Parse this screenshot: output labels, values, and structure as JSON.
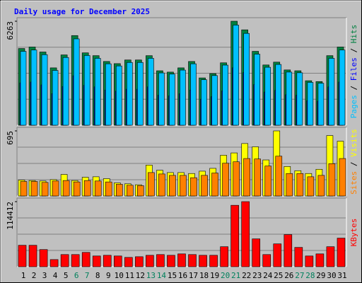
{
  "title": "Daily usage for December 2025",
  "chart_data": [
    {
      "type": "bar",
      "ylim": [
        0,
        6263
      ],
      "yticks": [
        6263
      ],
      "series": [
        {
          "name": "Hits",
          "color": "#008040",
          "values": [
            4620,
            4710,
            4410,
            3455,
            4235,
            5400,
            4360,
            4190,
            3840,
            3710,
            3930,
            3930,
            4190,
            3280,
            3200,
            3455,
            3840,
            2850,
            3110,
            3760,
            6263,
            5745,
            4450,
            3630,
            3800,
            3330,
            3280,
            2680,
            2630,
            4190,
            4710
          ]
        },
        {
          "name": "Files",
          "color": "#0000ff",
          "values": [
            2550,
            2600,
            2430,
            1900,
            2330,
            2980,
            2400,
            2310,
            2120,
            2050,
            2170,
            2170,
            2310,
            1810,
            1770,
            1900,
            2120,
            1570,
            1720,
            2070,
            3460,
            3170,
            2450,
            2000,
            2100,
            1840,
            1810,
            1480,
            1450,
            2310,
            2600
          ]
        },
        {
          "name": "Pages",
          "color": "#00c0ff",
          "values": [
            4450,
            4530,
            4250,
            3300,
            4080,
            5200,
            4200,
            4030,
            3700,
            3570,
            3780,
            3780,
            4030,
            3150,
            3080,
            3320,
            3700,
            2740,
            2990,
            3620,
            6030,
            5530,
            4280,
            3490,
            3660,
            3200,
            3160,
            2580,
            2530,
            4030,
            4530
          ]
        }
      ]
    },
    {
      "type": "bar",
      "ylim": [
        0,
        695
      ],
      "yticks": [
        695
      ],
      "series": [
        {
          "name": "Visits",
          "color": "#ffff00",
          "values": [
            170,
            165,
            160,
            175,
            230,
            165,
            200,
            205,
            185,
            140,
            130,
            120,
            330,
            275,
            250,
            250,
            240,
            265,
            295,
            435,
            460,
            560,
            525,
            385,
            695,
            315,
            270,
            240,
            285,
            645,
            585
          ]
        },
        {
          "name": "Sites",
          "color": "#ff8000",
          "values": [
            155,
            155,
            145,
            160,
            165,
            150,
            165,
            160,
            150,
            125,
            115,
            110,
            250,
            235,
            220,
            220,
            195,
            220,
            245,
            350,
            365,
            400,
            395,
            320,
            425,
            240,
            240,
            205,
            220,
            345,
            400
          ]
        }
      ]
    },
    {
      "type": "bar",
      "ylim": [
        0,
        114412
      ],
      "yticks": [
        114412
      ],
      "series": [
        {
          "name": "KBytes",
          "color": "#ff0000",
          "values": [
            37700,
            37700,
            30200,
            12600,
            21400,
            21400,
            25200,
            18900,
            20100,
            18900,
            16400,
            17600,
            20100,
            21400,
            20100,
            22600,
            21400,
            20100,
            20100,
            35200,
            108000,
            114412,
            49000,
            21400,
            40200,
            56500,
            34000,
            18900,
            22600,
            35200,
            50300
          ]
        }
      ],
      "categories": [
        "1",
        "2",
        "3",
        "4",
        "5",
        "6",
        "7",
        "8",
        "9",
        "10",
        "11",
        "12",
        "13",
        "14",
        "15",
        "16",
        "17",
        "18",
        "19",
        "20",
        "21",
        "22",
        "23",
        "24",
        "25",
        "26",
        "27",
        "28",
        "29",
        "30",
        "31"
      ],
      "category_label_colors": [
        "#000000",
        "#000000",
        "#000000",
        "#000000",
        "#000000",
        "#00805c",
        "#00805c",
        "#000000",
        "#000000",
        "#000000",
        "#000000",
        "#000000",
        "#00805c",
        "#00805c",
        "#000000",
        "#000000",
        "#000000",
        "#000000",
        "#000000",
        "#00805c",
        "#00805c",
        "#000000",
        "#000000",
        "#000000",
        "#000000",
        "#000000",
        "#00805c",
        "#00805c",
        "#000000",
        "#000000",
        "#000000"
      ]
    }
  ]
}
